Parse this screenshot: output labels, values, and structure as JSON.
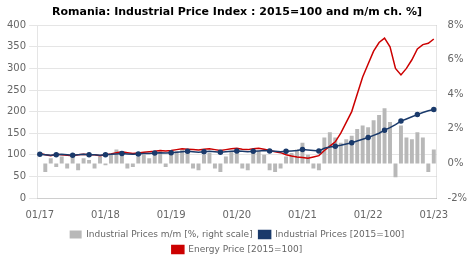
{
  "chart_data": {
    "type": "bar",
    "title": "Romania: Industrial Price Index : 2015=100 and m/m ch. %]",
    "categories": [
      "01/17",
      null,
      null,
      null,
      null,
      null,
      null,
      null,
      null,
      null,
      null,
      null,
      "01/18",
      null,
      null,
      null,
      null,
      null,
      null,
      null,
      null,
      null,
      null,
      null,
      "01/19",
      null,
      null,
      null,
      null,
      null,
      null,
      null,
      null,
      null,
      null,
      null,
      "01/20",
      null,
      null,
      null,
      null,
      null,
      null,
      null,
      null,
      null,
      null,
      null,
      "01/21",
      null,
      null,
      null,
      null,
      null,
      null,
      null,
      null,
      null,
      null,
      null,
      "01/22",
      null,
      null,
      null,
      null,
      null,
      null,
      null,
      null,
      null,
      null,
      null,
      "01/23"
    ],
    "series": [
      {
        "name": "Industrial Prices m/m [%, right scale]",
        "type": "bar",
        "color": "#b8b8b8",
        "axis": "y2",
        "values": [
          0.0,
          -0.5,
          0.3,
          -0.2,
          0.4,
          -0.3,
          0.5,
          -0.4,
          0.3,
          0.2,
          -0.3,
          0.4,
          -0.1,
          0.5,
          0.8,
          0.6,
          -0.3,
          -0.2,
          0.4,
          0.5,
          0.3,
          0.6,
          0.7,
          -0.2,
          0.5,
          0.7,
          0.8,
          0.6,
          -0.3,
          -0.4,
          0.5,
          0.6,
          -0.3,
          -0.5,
          0.4,
          0.7,
          0.8,
          -0.3,
          -0.4,
          0.6,
          0.7,
          0.5,
          -0.4,
          -0.5,
          -0.3,
          0.4,
          0.6,
          0.8,
          1.2,
          0.5,
          -0.3,
          -0.4,
          1.5,
          1.8,
          1.5,
          1.2,
          1.4,
          1.6,
          2.0,
          2.2,
          2.1,
          2.5,
          2.8,
          3.2,
          2.4,
          -0.8,
          2.2,
          1.5,
          1.4,
          1.8,
          1.5,
          -0.5,
          0.8
        ]
      },
      {
        "name": "Industrial Prices [2015=100]",
        "type": "line",
        "color": "#1a3a6b",
        "marker": "o",
        "values": [
          101,
          100,
          99,
          100,
          101,
          100,
          99,
          100,
          101,
          100,
          100,
          99,
          100,
          101,
          102,
          103,
          102,
          101,
          102,
          103,
          103,
          104,
          105,
          104,
          105,
          106,
          107,
          108,
          107,
          106,
          107,
          108,
          107,
          106,
          107,
          108,
          109,
          108,
          107,
          108,
          109,
          110,
          109,
          108,
          107,
          108,
          109,
          110,
          112,
          111,
          110,
          109,
          115,
          118,
          120,
          122,
          125,
          128,
          132,
          136,
          140,
          145,
          150,
          157,
          163,
          170,
          178,
          183,
          188,
          193,
          198,
          202,
          205
        ]
      },
      {
        "name": "Energy Price [2015=100]",
        "type": "line",
        "color": "#cc0000",
        "values": [
          103,
          100,
          98,
          101,
          100,
          99,
          98,
          100,
          101,
          100,
          100,
          98,
          100,
          102,
          105,
          107,
          105,
          103,
          104,
          106,
          107,
          108,
          110,
          109,
          110,
          112,
          114,
          113,
          112,
          111,
          113,
          114,
          112,
          110,
          112,
          114,
          115,
          113,
          112,
          114,
          115,
          113,
          110,
          107,
          105,
          100,
          97,
          95,
          94,
          92,
          95,
          98,
          110,
          120,
          130,
          150,
          175,
          200,
          240,
          280,
          310,
          340,
          360,
          370,
          350,
          300,
          285,
          300,
          320,
          345,
          355,
          358,
          368
        ]
      }
    ],
    "ylim": [
      0,
      400
    ],
    "yticks": [
      0,
      50,
      100,
      150,
      200,
      250,
      300,
      350,
      400
    ],
    "y2lim": [
      -2,
      8
    ],
    "y2ticks": [
      {
        "value": -2,
        "label": "-2%"
      },
      {
        "value": 0,
        "label": "0%"
      },
      {
        "value": 2,
        "label": "2%"
      },
      {
        "value": 4,
        "label": "4%"
      },
      {
        "value": 6,
        "label": "6%"
      },
      {
        "value": 8,
        "label": "8%"
      }
    ],
    "grid": "y",
    "legend": "bottom"
  }
}
